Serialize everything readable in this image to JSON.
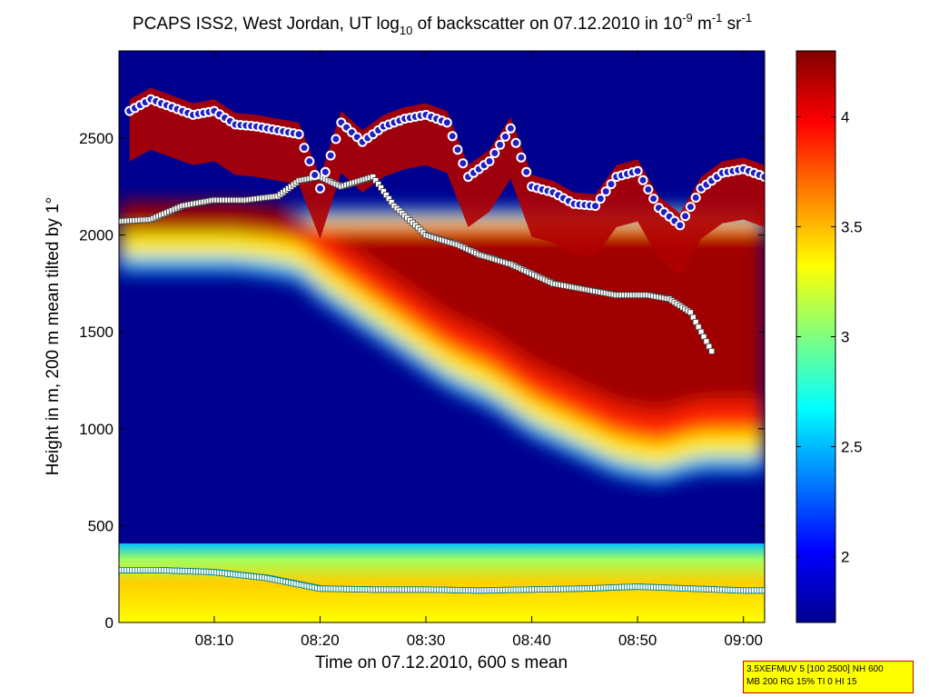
{
  "chart_data": {
    "type": "heatmap",
    "title_parts": {
      "pre": "PCAPS ISS2, West Jordan, UT log",
      "sub": "10",
      "mid": " of backscatter on 07.12.2010 in 10",
      "sup1": "-9",
      "unit1": " m",
      "sup2": "-1",
      "unit2": " sr",
      "sup3": "-1"
    },
    "xlabel": "Time on 07.12.2010, 600 s mean",
    "ylabel": "Height in m, 200 m mean tilted by 1°",
    "x_ticks": [
      "08:10",
      "08:20",
      "08:30",
      "08:40",
      "08:50",
      "09:00"
    ],
    "x_tick_minutes": [
      10,
      20,
      30,
      40,
      50,
      60
    ],
    "xlim_minutes": [
      1,
      62
    ],
    "y_ticks": [
      0,
      500,
      1000,
      1500,
      2000,
      2500
    ],
    "ylim": [
      0,
      2950
    ],
    "colorbar": {
      "ticks": [
        2,
        2.5,
        3,
        3.5,
        4
      ],
      "tick_labels": [
        "2",
        "2.5",
        "3",
        "3.5",
        "4"
      ],
      "range": [
        1.7,
        4.3
      ]
    },
    "series": {
      "aerosol_layer_top": {
        "time_min": [
          1,
          4,
          8,
          12,
          15,
          18,
          20,
          24,
          28,
          32,
          36,
          40,
          44,
          48,
          52,
          56,
          60,
          62
        ],
        "height_m": [
          1850,
          1850,
          1850,
          1850,
          1830,
          1800,
          1700,
          1550,
          1400,
          1250,
          1150,
          1000,
          900,
          800,
          760,
          820,
          820,
          820
        ]
      },
      "surface_layer_height": {
        "time_min": [
          1,
          5,
          10,
          15,
          20,
          25,
          30,
          35,
          40,
          45,
          50,
          55,
          60,
          62
        ],
        "height_m": [
          270,
          270,
          260,
          230,
          175,
          170,
          170,
          165,
          170,
          175,
          185,
          175,
          165,
          165
        ]
      },
      "mixing_layer_height": {
        "time_min": [
          1,
          4,
          7,
          10,
          13,
          16,
          18,
          20,
          22,
          25,
          27,
          30,
          33,
          35,
          38,
          40,
          42,
          45,
          48,
          51,
          53,
          55,
          57
        ],
        "height_m": [
          2070,
          2080,
          2150,
          2180,
          2180,
          2200,
          2280,
          2300,
          2250,
          2300,
          2150,
          2000,
          1950,
          1900,
          1850,
          1800,
          1750,
          1720,
          1690,
          1690,
          1670,
          1600,
          1400
        ]
      },
      "cloud_base_height": {
        "time_min": [
          2,
          4,
          6,
          8,
          10,
          12,
          14,
          16,
          18,
          20,
          22,
          24,
          26,
          28,
          30,
          32,
          34,
          36,
          38,
          40,
          42,
          44,
          46,
          48,
          50,
          52,
          54,
          56,
          58,
          60,
          62
        ],
        "height_m": [
          2640,
          2700,
          2660,
          2620,
          2640,
          2570,
          2560,
          2540,
          2520,
          2240,
          2580,
          2480,
          2560,
          2600,
          2620,
          2580,
          2300,
          2380,
          2550,
          2250,
          2220,
          2160,
          2150,
          2300,
          2330,
          2140,
          2050,
          2240,
          2320,
          2340,
          2300
        ]
      }
    }
  },
  "info_box": {
    "line1": "3.5XEFMUV 5 [100 2500] NH 600",
    "line2": "MB 200 RG 15% TI 0 HI 15"
  },
  "colors": {
    "low": "#00008f",
    "mid": "#7fff7f",
    "high": "#800000",
    "marker_white": "#ffffff",
    "marker_cloud": "#2020c0"
  }
}
